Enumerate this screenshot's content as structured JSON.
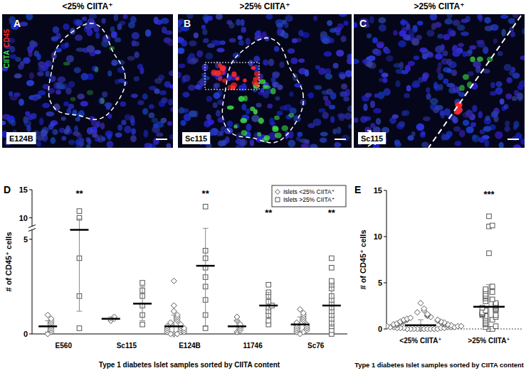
{
  "panels": [
    {
      "letter": "A",
      "header": "<25% CIITA⁺",
      "sample": "E124B"
    },
    {
      "letter": "B",
      "header": ">25% CIITA⁺",
      "sample": "Sc115"
    },
    {
      "letter": "C",
      "header": ">25% CIITA⁺",
      "sample": "Sc115"
    }
  ],
  "stains": [
    {
      "text": "CIITA",
      "color": "#3ddc4a"
    },
    {
      "text": "CD45",
      "color": "#ff2a2a"
    }
  ],
  "chart_data": [
    {
      "type": "scatter",
      "title": "D",
      "x_label": "Type 1 diabetes Islet samples sorted by CIITA content",
      "y_label": "# of CD45⁺ cells",
      "categories": [
        "E560",
        "Sc115",
        "E124B",
        "11746",
        "Sc76"
      ],
      "series": [
        {
          "name": "Islets <25% CIITA⁺",
          "marker": "diamond",
          "color": "#555555",
          "values": [
            [
              0.0,
              0.1,
              0.2,
              0.3,
              0.4,
              0.5,
              0.6,
              0.7,
              0.8,
              1.0
            ],
            [
              0.7,
              0.8,
              0.9
            ],
            [
              0.0,
              0.0,
              0.0,
              0.1,
              0.1,
              0.1,
              0.2,
              0.2,
              0.2,
              0.3,
              0.3,
              0.3,
              0.4,
              0.4,
              0.5,
              0.5,
              0.6,
              0.7,
              0.8,
              0.9,
              1.0,
              1.2,
              1.5,
              2.8
            ],
            [
              0.1,
              0.2,
              0.3,
              0.4,
              0.5,
              0.7,
              0.9
            ],
            [
              0.0,
              0.1,
              0.1,
              0.2,
              0.2,
              0.3,
              0.3,
              0.4,
              0.4,
              0.5,
              0.5,
              0.6,
              0.7,
              0.8,
              0.9,
              1.0,
              1.1,
              1.3
            ]
          ],
          "mean": [
            0.4,
            0.8,
            0.4,
            0.4,
            0.5
          ],
          "error": [
            0.3,
            0.1,
            0.6,
            0.3,
            0.4
          ]
        },
        {
          "name": "Islets >25% CIITA⁺",
          "marker": "square",
          "color": "#555555",
          "values": [
            [
              0.3,
              2.0,
              4.0,
              10.0,
              11.2
            ],
            [
              0.5,
              1.0,
              1.5,
              2.0,
              2.3,
              2.7
            ],
            [
              0.3,
              1.0,
              1.8,
              2.5,
              3.0,
              3.5,
              4.0,
              4.4,
              12.0
            ],
            [
              0.5,
              0.7,
              1.0,
              1.2,
              1.4,
              1.5,
              1.7,
              2.0,
              2.2,
              2.6
            ],
            [
              0.0,
              0.2,
              0.4,
              0.6,
              0.8,
              1.0,
              1.2,
              1.4,
              1.6,
              1.8,
              2.0,
              2.4,
              2.6,
              2.8,
              3.5,
              4.0
            ]
          ],
          "mean": [
            5.5,
            1.6,
            3.6,
            1.5,
            1.5
          ],
          "error": [
            4.3,
            0.9,
            3.2,
            0.7,
            1.1
          ]
        }
      ],
      "ylim": [
        0,
        15
      ],
      "yticks": [
        0,
        5,
        10,
        15
      ],
      "y_break": [
        5.5,
        8.5
      ],
      "grid": false,
      "legend": "upper right",
      "annotations": [
        {
          "text": "**",
          "category": "E560",
          "series": "Islets >25% CIITA⁺"
        },
        {
          "text": "**",
          "category": "E124B",
          "series": "Islets >25% CIITA⁺"
        },
        {
          "text": "**",
          "category": "11746",
          "series": "Islets >25% CIITA⁺"
        },
        {
          "text": "**",
          "category": "Sc76",
          "series": "Islets >25% CIITA⁺"
        }
      ]
    },
    {
      "type": "scatter",
      "title": "E",
      "x_label": "Type 1 diabetes Islet samples sorted by CIITA content",
      "y_label": "# of CD45⁺ cells",
      "categories": [
        "<25% CIITA⁺",
        ">25% CIITA⁺"
      ],
      "series": [
        {
          "marker": "diamond",
          "color": "#555555",
          "values": [
            [
              0,
              0,
              0,
              0,
              0,
              0,
              0,
              0,
              0,
              0,
              0.1,
              0.1,
              0.1,
              0.1,
              0.1,
              0.2,
              0.2,
              0.2,
              0.2,
              0.2,
              0.3,
              0.3,
              0.3,
              0.3,
              0.4,
              0.4,
              0.4,
              0.4,
              0.5,
              0.5,
              0.5,
              0.5,
              0.6,
              0.6,
              0.6,
              0.7,
              0.7,
              0.7,
              0.8,
              0.8,
              0.8,
              0.9,
              0.9,
              1.0,
              1.0,
              1.0,
              1.1,
              1.2,
              1.3,
              1.4,
              1.5,
              1.6,
              1.8,
              2.0,
              2.2,
              2.8
            ],
            null
          ],
          "mean": [
            0.4,
            null
          ],
          "error": [
            0.6,
            null
          ]
        },
        {
          "marker": "square",
          "color": "#555555",
          "values": [
            null,
            [
              0,
              0,
              0.2,
              0.3,
              0.5,
              0.6,
              0.8,
              1.0,
              1.0,
              1.2,
              1.3,
              1.4,
              1.5,
              1.5,
              1.6,
              1.7,
              1.8,
              2.0,
              2.0,
              2.1,
              2.2,
              2.3,
              2.4,
              2.5,
              2.6,
              2.7,
              2.8,
              3.0,
              3.2,
              3.3,
              3.5,
              3.6,
              3.8,
              4.0,
              4.1,
              4.3,
              4.6,
              8.2,
              11.1,
              11.2,
              12.2
            ]
          ],
          "mean": [
            null,
            2.4
          ],
          "error": [
            null,
            2.4
          ]
        }
      ],
      "ylim": [
        0,
        15
      ],
      "yticks": [
        0,
        5,
        10,
        15
      ],
      "grid": false,
      "annotations": [
        {
          "text": "***",
          "category": ">25% CIITA⁺"
        }
      ]
    }
  ]
}
